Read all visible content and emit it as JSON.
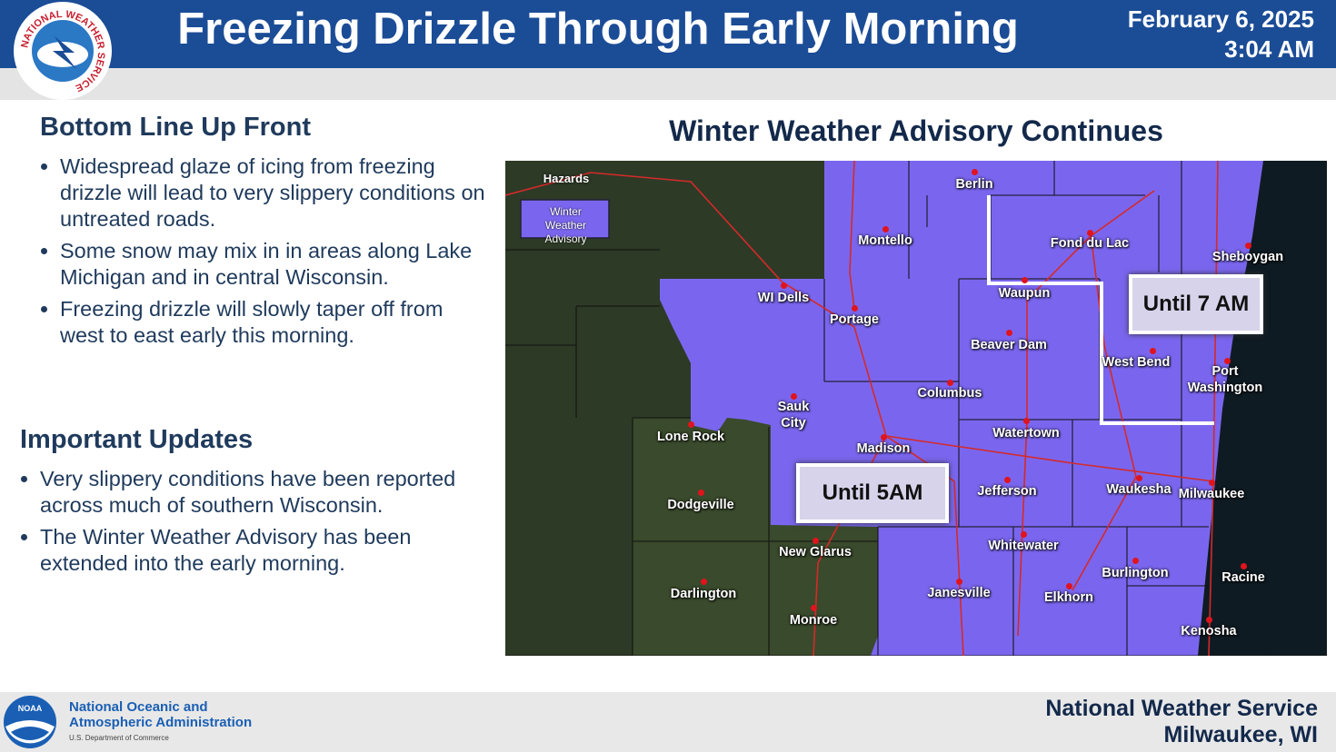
{
  "header": {
    "title": "Freezing Drizzle Through Early Morning",
    "date": "February 6, 2025",
    "time": "3:04 AM",
    "logo_text": "NATIONAL WEATHER SERVICE"
  },
  "summary": {
    "heading": "Bottom Line Up Front",
    "bullets": [
      "Widespread glaze of icing from freezing drizzle will lead to very slippery conditions on untreated roads.",
      "Some snow may mix in in areas along Lake Michigan and in central Wisconsin.",
      "Freezing drizzle will slowly taper off from west to east early this morning."
    ]
  },
  "updates": {
    "heading": "Important Updates",
    "bullets": [
      "Very slippery conditions have been reported across much of southern Wisconsin.",
      "The Winter Weather Advisory has been extended into the early morning."
    ]
  },
  "map": {
    "title": "Winter Weather Advisory Continues",
    "legend_title": "Hazards",
    "legend_item": "Winter Weather Advisory",
    "callouts": [
      "Until 7 AM",
      "Until 5AM"
    ],
    "cities": [
      "Berlin",
      "Montello",
      "Fond du Lac",
      "Sheboygan",
      "WI Dells",
      "Portage",
      "Waupun",
      "Beaver Dam",
      "West Bend",
      "Port Washington",
      "Columbus",
      "Sauk City",
      "Lone Rock",
      "Madison",
      "Watertown",
      "Jefferson",
      "Waukesha",
      "Milwaukee",
      "Dodgeville",
      "New Glarus",
      "Whitewater",
      "Burlington",
      "Racine",
      "Darlington",
      "Janesville",
      "Elkhorn",
      "Monroe",
      "Kenosha"
    ]
  },
  "footer": {
    "noaa": "NOAA",
    "agency": "National Oceanic and Atmospheric Administration",
    "department": "U.S. Department of Commerce",
    "office": "National Weather Service",
    "location": "Milwaukee, WI"
  }
}
